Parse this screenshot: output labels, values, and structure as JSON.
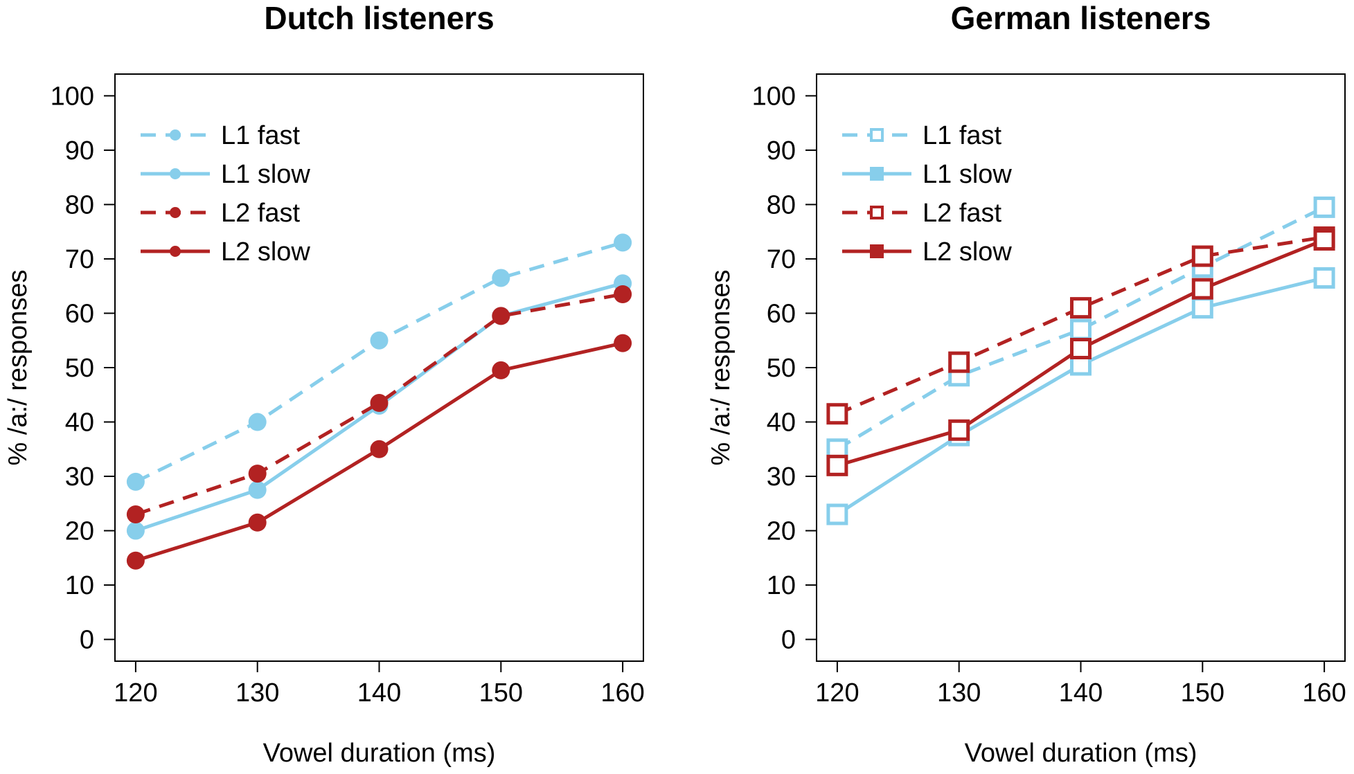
{
  "chart_data": [
    {
      "type": "line",
      "title": "Dutch listeners",
      "xlabel": "Vowel duration (ms)",
      "ylabel": "% /a:/ responses",
      "x": [
        120,
        130,
        140,
        150,
        160
      ],
      "xlim": [
        118.3,
        161.7
      ],
      "ylim": [
        -4,
        104
      ],
      "yticks": [
        0,
        10,
        20,
        30,
        40,
        50,
        60,
        70,
        80,
        90,
        100
      ],
      "marker": "circle",
      "legend_position": "top-left",
      "series": [
        {
          "name": "L1 fast",
          "color": "#87CEEB",
          "dashed": true,
          "values": [
            29,
            40,
            55,
            66.5,
            73
          ]
        },
        {
          "name": "L1 slow",
          "color": "#87CEEB",
          "dashed": false,
          "values": [
            20,
            27.5,
            43,
            59.5,
            65.5
          ]
        },
        {
          "name": "L2 fast",
          "color": "#B22222",
          "dashed": true,
          "values": [
            23,
            30.5,
            43.5,
            59.5,
            63.5
          ]
        },
        {
          "name": "L2 slow",
          "color": "#B22222",
          "dashed": false,
          "values": [
            14.5,
            21.5,
            35,
            49.5,
            54.5
          ]
        }
      ]
    },
    {
      "type": "line",
      "title": "German listeners",
      "xlabel": "Vowel duration (ms)",
      "ylabel": "% /a:/ responses",
      "x": [
        120,
        130,
        140,
        150,
        160
      ],
      "xlim": [
        118.3,
        161.7
      ],
      "ylim": [
        -4,
        104
      ],
      "yticks": [
        0,
        10,
        20,
        30,
        40,
        50,
        60,
        70,
        80,
        90,
        100
      ],
      "marker": "square",
      "legend_position": "top-left",
      "series": [
        {
          "name": "L1 fast",
          "color": "#87CEEB",
          "dashed": true,
          "values": [
            35,
            48.5,
            57,
            68.5,
            79.5
          ]
        },
        {
          "name": "L1 slow",
          "color": "#87CEEB",
          "dashed": false,
          "values": [
            23,
            37.5,
            50.5,
            61,
            66.5
          ]
        },
        {
          "name": "L2 fast",
          "color": "#B22222",
          "dashed": true,
          "values": [
            41.5,
            51,
            61,
            70.5,
            74
          ]
        },
        {
          "name": "L2 slow",
          "color": "#B22222",
          "dashed": false,
          "values": [
            32,
            38.5,
            53.5,
            64.5,
            73.5
          ]
        }
      ]
    }
  ]
}
